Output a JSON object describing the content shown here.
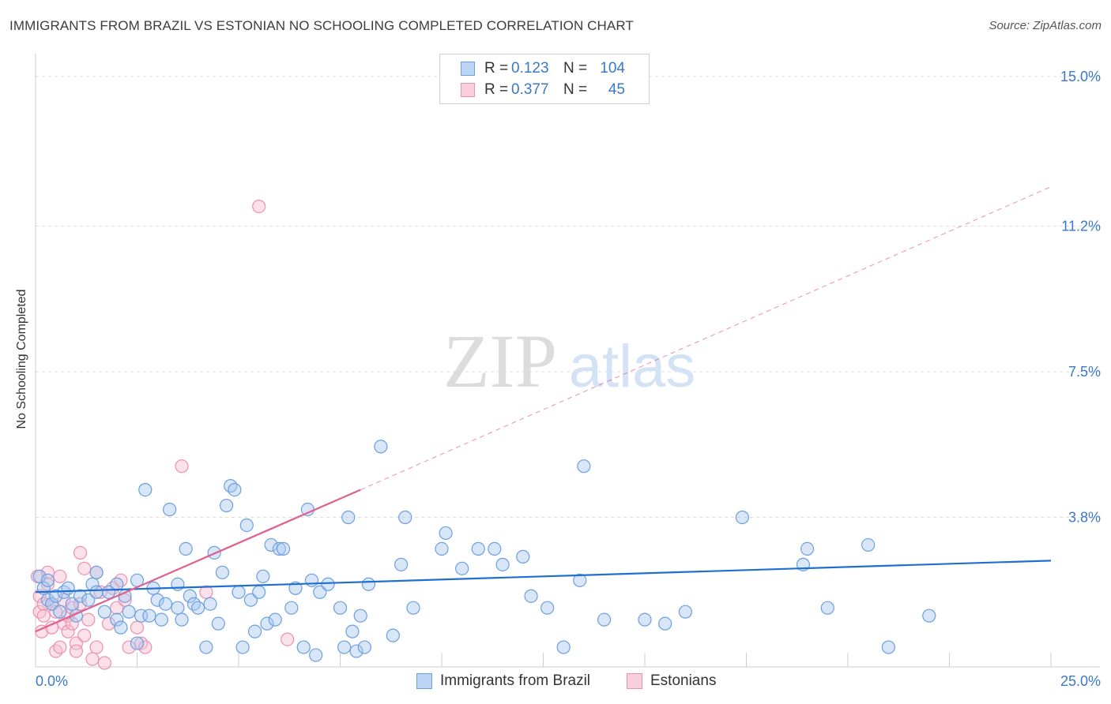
{
  "header": {
    "title": "IMMIGRANTS FROM BRAZIL VS ESTONIAN NO SCHOOLING COMPLETED CORRELATION CHART",
    "source": "Source: ZipAtlas.com"
  },
  "watermark": {
    "zip": "ZIP",
    "atlas": "atlas"
  },
  "colors": {
    "blue_fill": "#a9c8f0",
    "blue_stroke": "#6b9fe0",
    "blue_line": "#1f6fd1",
    "pink_fill": "#f7bfd0",
    "pink_stroke": "#ee8fae",
    "pink_line": "#e0608f",
    "tick_label": "#3a78c9"
  },
  "legend": {
    "rows": [
      {
        "r_label": "R =",
        "r_value": "0.123",
        "n_label": "N =",
        "n_value": "104"
      },
      {
        "r_label": "R =",
        "r_value": "0.377",
        "n_label": "N =",
        "n_value": "45"
      }
    ]
  },
  "series_labels": {
    "blue": "Immigrants from Brazil",
    "pink": "Estonians"
  },
  "chart_data": {
    "type": "scatter",
    "title": "IMMIGRANTS FROM BRAZIL VS ESTONIAN NO SCHOOLING COMPLETED CORRELATION CHART",
    "xlabel": "",
    "ylabel": "No Schooling Completed",
    "xlim": [
      0,
      25
    ],
    "ylim": [
      0,
      15
    ],
    "x_tick_labels": [
      "0.0%",
      "25.0%"
    ],
    "y_ticks": [
      {
        "value": 3.8,
        "label": "3.8%"
      },
      {
        "value": 7.5,
        "label": "7.5%"
      },
      {
        "value": 11.2,
        "label": "11.2%"
      },
      {
        "value": 15.0,
        "label": "15.0%"
      }
    ],
    "x_minor_ticks": [
      2.5,
      5,
      7.5,
      10,
      12.5,
      15,
      17.5,
      20,
      22.5,
      25
    ],
    "series": [
      {
        "name": "Immigrants from Brazil",
        "color": "blue",
        "R": 0.123,
        "N": 104,
        "trend": {
          "x0": 0,
          "y0": 1.9,
          "x1": 25,
          "y1": 2.7,
          "dashed_to": null
        },
        "points": [
          [
            0.1,
            2.3
          ],
          [
            0.2,
            2.0
          ],
          [
            0.3,
            1.7
          ],
          [
            0.3,
            2.2
          ],
          [
            0.4,
            1.6
          ],
          [
            0.5,
            1.8
          ],
          [
            0.6,
            1.4
          ],
          [
            0.7,
            1.9
          ],
          [
            0.8,
            2.0
          ],
          [
            0.9,
            1.6
          ],
          [
            1.0,
            1.3
          ],
          [
            1.1,
            1.8
          ],
          [
            1.3,
            1.7
          ],
          [
            1.4,
            2.1
          ],
          [
            1.5,
            1.9
          ],
          [
            1.5,
            2.4
          ],
          [
            1.7,
            1.4
          ],
          [
            1.8,
            1.9
          ],
          [
            2.0,
            1.2
          ],
          [
            2.0,
            2.1
          ],
          [
            2.1,
            1.0
          ],
          [
            2.2,
            1.8
          ],
          [
            2.3,
            1.4
          ],
          [
            2.5,
            0.6
          ],
          [
            2.5,
            2.2
          ],
          [
            2.6,
            1.3
          ],
          [
            2.7,
            4.5
          ],
          [
            2.8,
            1.3
          ],
          [
            2.9,
            2.0
          ],
          [
            3.0,
            1.7
          ],
          [
            3.1,
            1.2
          ],
          [
            3.2,
            1.6
          ],
          [
            3.3,
            4.0
          ],
          [
            3.5,
            2.1
          ],
          [
            3.5,
            1.5
          ],
          [
            3.6,
            1.2
          ],
          [
            3.7,
            3.0
          ],
          [
            3.8,
            1.8
          ],
          [
            3.9,
            1.6
          ],
          [
            4.0,
            1.5
          ],
          [
            4.2,
            0.5
          ],
          [
            4.3,
            1.6
          ],
          [
            4.4,
            2.9
          ],
          [
            4.5,
            1.1
          ],
          [
            4.6,
            2.4
          ],
          [
            4.7,
            4.1
          ],
          [
            4.8,
            4.6
          ],
          [
            4.9,
            4.5
          ],
          [
            5.0,
            1.9
          ],
          [
            5.1,
            0.5
          ],
          [
            5.2,
            3.6
          ],
          [
            5.3,
            1.7
          ],
          [
            5.4,
            0.9
          ],
          [
            5.5,
            1.9
          ],
          [
            5.6,
            2.3
          ],
          [
            5.7,
            1.1
          ],
          [
            5.8,
            3.1
          ],
          [
            5.9,
            1.2
          ],
          [
            6.0,
            3.0
          ],
          [
            6.1,
            3.0
          ],
          [
            6.3,
            1.5
          ],
          [
            6.4,
            2.0
          ],
          [
            6.6,
            0.5
          ],
          [
            6.7,
            4.0
          ],
          [
            6.8,
            2.2
          ],
          [
            6.9,
            0.3
          ],
          [
            7.0,
            1.9
          ],
          [
            7.2,
            2.1
          ],
          [
            7.5,
            1.5
          ],
          [
            7.6,
            0.5
          ],
          [
            7.7,
            3.8
          ],
          [
            7.8,
            0.9
          ],
          [
            7.9,
            0.4
          ],
          [
            8.0,
            1.3
          ],
          [
            8.1,
            0.5
          ],
          [
            8.2,
            2.1
          ],
          [
            8.5,
            5.6
          ],
          [
            8.8,
            0.8
          ],
          [
            9.0,
            2.6
          ],
          [
            9.1,
            3.8
          ],
          [
            9.3,
            1.5
          ],
          [
            10.0,
            3.0
          ],
          [
            10.1,
            3.4
          ],
          [
            10.5,
            2.5
          ],
          [
            10.9,
            3.0
          ],
          [
            11.3,
            3.0
          ],
          [
            11.5,
            2.6
          ],
          [
            12.0,
            2.8
          ],
          [
            12.2,
            1.8
          ],
          [
            12.6,
            1.5
          ],
          [
            13.0,
            0.5
          ],
          [
            13.4,
            2.2
          ],
          [
            13.5,
            5.1
          ],
          [
            14.0,
            1.2
          ],
          [
            15.0,
            1.2
          ],
          [
            15.5,
            1.1
          ],
          [
            16.0,
            1.4
          ],
          [
            17.4,
            3.8
          ],
          [
            18.9,
            2.6
          ],
          [
            19.5,
            1.5
          ],
          [
            21.0,
            0.5
          ],
          [
            22.0,
            1.3
          ],
          [
            19.0,
            3.0
          ],
          [
            20.5,
            3.1
          ]
        ]
      },
      {
        "name": "Estonians",
        "color": "pink",
        "R": 0.377,
        "N": 45,
        "trend": {
          "x0": 0,
          "y0": 0.9,
          "x1": 8.0,
          "y1": 4.5,
          "dashed_to": [
            25,
            12.2
          ]
        },
        "points": [
          [
            0.05,
            2.3
          ],
          [
            0.1,
            1.4
          ],
          [
            0.1,
            1.8
          ],
          [
            0.15,
            0.9
          ],
          [
            0.2,
            1.6
          ],
          [
            0.2,
            1.3
          ],
          [
            0.3,
            2.4
          ],
          [
            0.3,
            2.1
          ],
          [
            0.4,
            1.6
          ],
          [
            0.4,
            1.0
          ],
          [
            0.5,
            1.4
          ],
          [
            0.5,
            0.4
          ],
          [
            0.6,
            2.3
          ],
          [
            0.6,
            0.5
          ],
          [
            0.7,
            1.7
          ],
          [
            0.7,
            1.1
          ],
          [
            0.8,
            0.9
          ],
          [
            0.8,
            1.3
          ],
          [
            0.9,
            1.1
          ],
          [
            0.9,
            1.5
          ],
          [
            1.0,
            0.6
          ],
          [
            1.0,
            0.4
          ],
          [
            1.1,
            2.9
          ],
          [
            1.1,
            1.6
          ],
          [
            1.2,
            2.5
          ],
          [
            1.2,
            0.8
          ],
          [
            1.3,
            1.2
          ],
          [
            1.4,
            0.2
          ],
          [
            1.5,
            0.5
          ],
          [
            1.5,
            2.4
          ],
          [
            1.6,
            1.9
          ],
          [
            1.7,
            0.1
          ],
          [
            1.8,
            1.1
          ],
          [
            1.9,
            2.0
          ],
          [
            2.0,
            1.5
          ],
          [
            2.1,
            2.2
          ],
          [
            2.2,
            1.7
          ],
          [
            2.3,
            0.5
          ],
          [
            2.5,
            1.0
          ],
          [
            2.6,
            0.6
          ],
          [
            2.7,
            0.5
          ],
          [
            3.6,
            5.1
          ],
          [
            4.2,
            1.9
          ],
          [
            5.5,
            11.7
          ],
          [
            6.2,
            0.7
          ]
        ]
      }
    ]
  }
}
